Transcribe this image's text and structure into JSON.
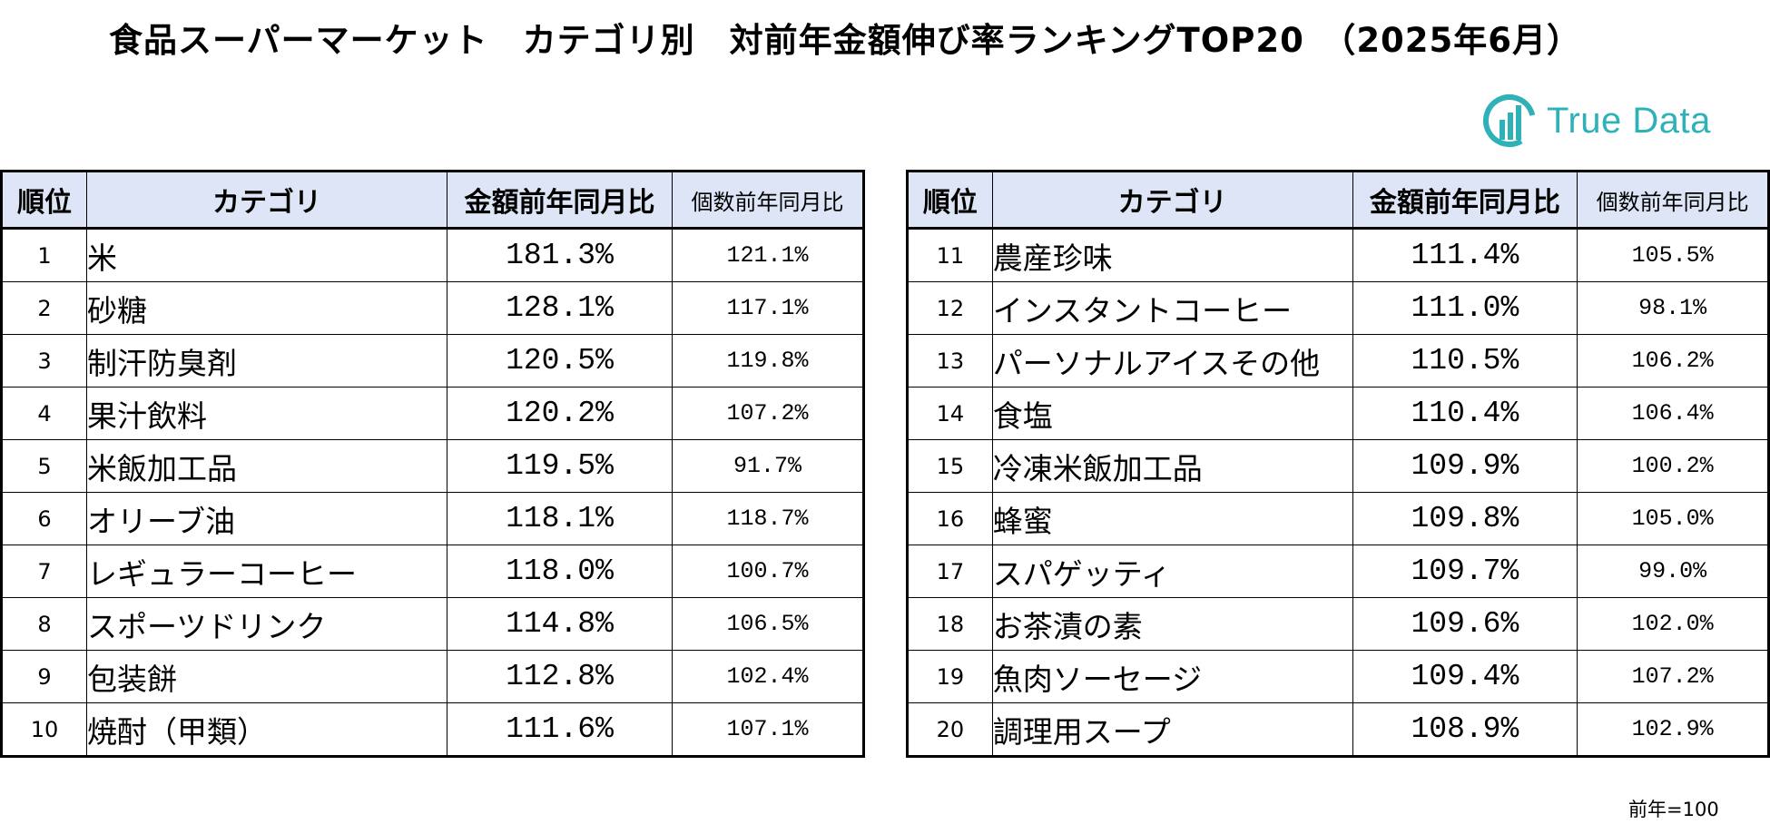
{
  "title": "食品スーパーマーケット　カテゴリ別　対前年金額伸び率ランキングTOP20　（2025年6月）",
  "logo": {
    "text": "True Data",
    "color": "#2eb1b7"
  },
  "headers": {
    "rank": "順位",
    "category": "カテゴリ",
    "amount_yoy": "金額前年同月比",
    "quantity_yoy": "個数前年同月比"
  },
  "header_bg": "#dde5f6",
  "left_rows": [
    {
      "rank": "1",
      "category": "米",
      "amount": "181.3%",
      "quantity": "121.1%"
    },
    {
      "rank": "2",
      "category": "砂糖",
      "amount": "128.1%",
      "quantity": "117.1%"
    },
    {
      "rank": "3",
      "category": "制汗防臭剤",
      "amount": "120.5%",
      "quantity": "119.8%"
    },
    {
      "rank": "4",
      "category": "果汁飲料",
      "amount": "120.2%",
      "quantity": "107.2%"
    },
    {
      "rank": "5",
      "category": "米飯加工品",
      "amount": "119.5%",
      "quantity": "91.7%"
    },
    {
      "rank": "6",
      "category": "オリーブ油",
      "amount": "118.1%",
      "quantity": "118.7%"
    },
    {
      "rank": "7",
      "category": "レギュラーコーヒー",
      "amount": "118.0%",
      "quantity": "100.7%"
    },
    {
      "rank": "8",
      "category": "スポーツドリンク",
      "amount": "114.8%",
      "quantity": "106.5%"
    },
    {
      "rank": "9",
      "category": "包装餅",
      "amount": "112.8%",
      "quantity": "102.4%"
    },
    {
      "rank": "10",
      "category": "焼酎（甲類）",
      "amount": "111.6%",
      "quantity": "107.1%"
    }
  ],
  "right_rows": [
    {
      "rank": "11",
      "category": "農産珍味",
      "amount": "111.4%",
      "quantity": "105.5%"
    },
    {
      "rank": "12",
      "category": "インスタントコーヒー",
      "amount": "111.0%",
      "quantity": "98.1%"
    },
    {
      "rank": "13",
      "category": "パーソナルアイスその他",
      "amount": "110.5%",
      "quantity": "106.2%"
    },
    {
      "rank": "14",
      "category": "食塩",
      "amount": "110.4%",
      "quantity": "106.4%"
    },
    {
      "rank": "15",
      "category": "冷凍米飯加工品",
      "amount": "109.9%",
      "quantity": "100.2%"
    },
    {
      "rank": "16",
      "category": "蜂蜜",
      "amount": "109.8%",
      "quantity": "105.0%"
    },
    {
      "rank": "17",
      "category": "スパゲッティ",
      "amount": "109.7%",
      "quantity": "99.0%"
    },
    {
      "rank": "18",
      "category": "お茶漬の素",
      "amount": "109.6%",
      "quantity": "102.0%"
    },
    {
      "rank": "19",
      "category": "魚肉ソーセージ",
      "amount": "109.4%",
      "quantity": "107.2%"
    },
    {
      "rank": "20",
      "category": "調理用スープ",
      "amount": "108.9%",
      "quantity": "102.9%"
    }
  ],
  "footnote": "前年=100"
}
